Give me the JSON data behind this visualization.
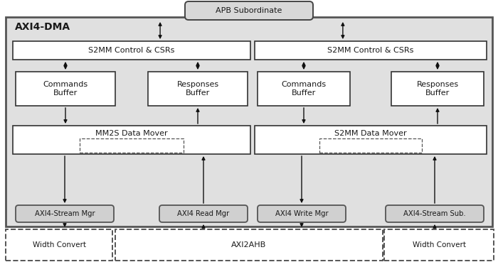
{
  "title": "AXI4-DMA",
  "apb_label": "APB Subordinate",
  "s2mm_ctrl_left": "S2MM Control & CSRs",
  "s2mm_ctrl_right": "S2MM Control & CSRs",
  "cmd_buf": "Commands\nBuffer",
  "resp_buf": "Responses\nBuffer",
  "mm2s_mover": "MM2S Data Mover",
  "s2mm_mover": "S2MM Data Mover",
  "axi4_stream_mgr": "AXI4-Stream Mgr",
  "axi4_read_mgr": "AXI4 Read Mgr",
  "axi4_write_mgr": "AXI4 Write Mgr",
  "axi4_stream_sub": "AXI4-Stream Sub.",
  "width_convert_left": "Width Convert",
  "axi2ahb": "AXI2AHB",
  "width_convert_right": "Width Convert",
  "bg_color": "#e0e0e0",
  "box_fill": "#ffffff",
  "gray_box_fill": "#d0d0d0",
  "dashed_fill": "none"
}
